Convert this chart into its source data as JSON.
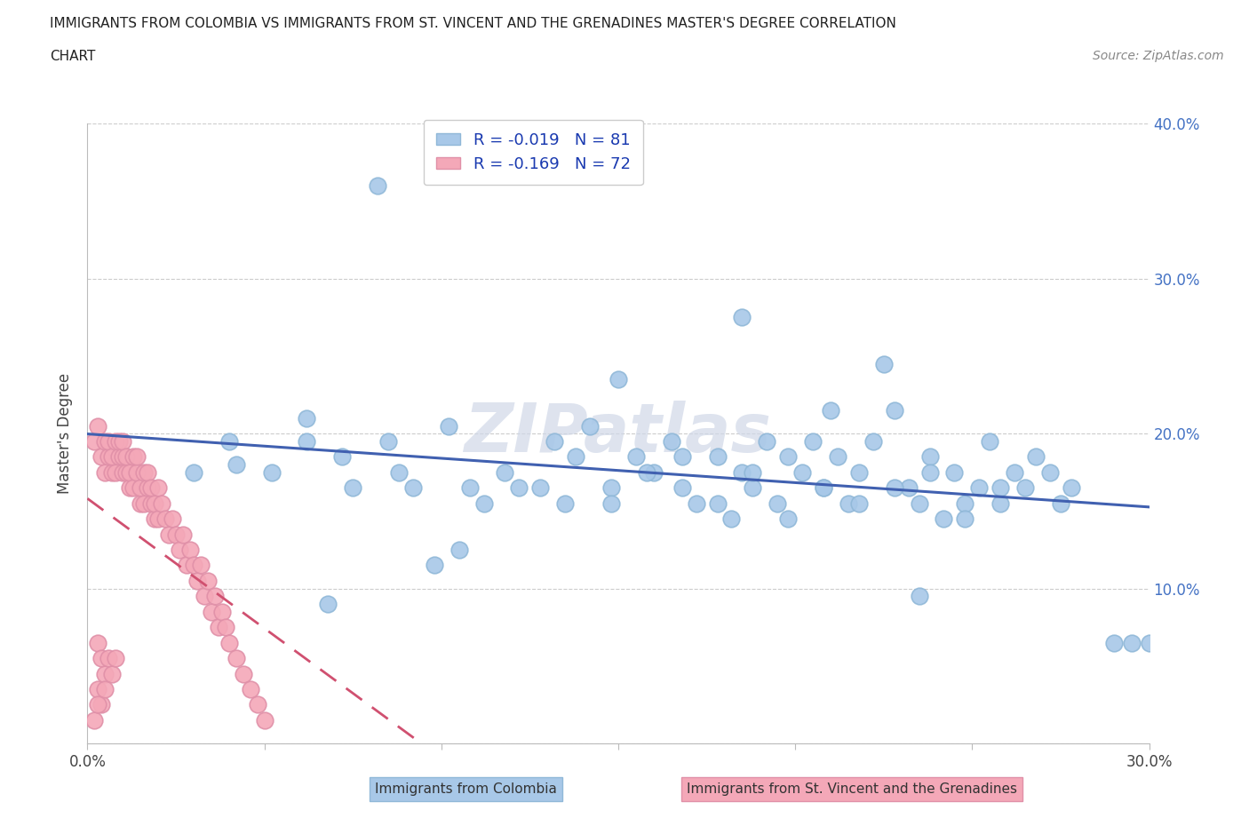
{
  "title_line1": "IMMIGRANTS FROM COLOMBIA VS IMMIGRANTS FROM ST. VINCENT AND THE GRENADINES MASTER'S DEGREE CORRELATION",
  "title_line2": "CHART",
  "source": "Source: ZipAtlas.com",
  "ylabel": "Master's Degree",
  "xlim": [
    0.0,
    0.3
  ],
  "ylim": [
    0.0,
    0.4
  ],
  "colombia_R": -0.019,
  "colombia_N": 81,
  "svg_R": -0.169,
  "svg_N": 72,
  "colombia_color": "#a8c8e8",
  "svg_color": "#f4a8b8",
  "colombia_line_color": "#4060b0",
  "svg_line_color": "#d05070",
  "watermark": "ZIPatlas",
  "legend_label_1": "Immigrants from Colombia",
  "legend_label_2": "Immigrants from St. Vincent and the Grenadines",
  "colombia_x": [
    0.082,
    0.03,
    0.042,
    0.052,
    0.062,
    0.072,
    0.085,
    0.092,
    0.102,
    0.112,
    0.122,
    0.132,
    0.142,
    0.148,
    0.155,
    0.16,
    0.165,
    0.168,
    0.172,
    0.178,
    0.182,
    0.185,
    0.188,
    0.192,
    0.195,
    0.198,
    0.202,
    0.205,
    0.208,
    0.212,
    0.215,
    0.218,
    0.222,
    0.225,
    0.228,
    0.232,
    0.235,
    0.238,
    0.242,
    0.245,
    0.248,
    0.252,
    0.255,
    0.258,
    0.262,
    0.265,
    0.268,
    0.272,
    0.275,
    0.278,
    0.062,
    0.075,
    0.088,
    0.098,
    0.108,
    0.118,
    0.128,
    0.138,
    0.148,
    0.158,
    0.168,
    0.178,
    0.188,
    0.198,
    0.208,
    0.218,
    0.228,
    0.238,
    0.248,
    0.258,
    0.04,
    0.135,
    0.15,
    0.21,
    0.235,
    0.29,
    0.295,
    0.3,
    0.185,
    0.105,
    0.068
  ],
  "colombia_y": [
    0.36,
    0.175,
    0.18,
    0.175,
    0.21,
    0.185,
    0.195,
    0.165,
    0.205,
    0.155,
    0.165,
    0.195,
    0.205,
    0.165,
    0.185,
    0.175,
    0.195,
    0.165,
    0.155,
    0.185,
    0.145,
    0.175,
    0.165,
    0.195,
    0.155,
    0.185,
    0.175,
    0.195,
    0.165,
    0.185,
    0.155,
    0.175,
    0.195,
    0.245,
    0.215,
    0.165,
    0.155,
    0.185,
    0.145,
    0.175,
    0.155,
    0.165,
    0.195,
    0.155,
    0.175,
    0.165,
    0.185,
    0.175,
    0.155,
    0.165,
    0.195,
    0.165,
    0.175,
    0.115,
    0.165,
    0.175,
    0.165,
    0.185,
    0.155,
    0.175,
    0.185,
    0.155,
    0.175,
    0.145,
    0.165,
    0.155,
    0.165,
    0.175,
    0.145,
    0.165,
    0.195,
    0.155,
    0.235,
    0.215,
    0.095,
    0.065,
    0.065,
    0.065,
    0.275,
    0.125,
    0.09
  ],
  "svg_x": [
    0.002,
    0.003,
    0.004,
    0.005,
    0.005,
    0.006,
    0.006,
    0.007,
    0.007,
    0.008,
    0.008,
    0.009,
    0.009,
    0.01,
    0.01,
    0.01,
    0.011,
    0.011,
    0.012,
    0.012,
    0.013,
    0.013,
    0.014,
    0.014,
    0.015,
    0.015,
    0.016,
    0.016,
    0.017,
    0.017,
    0.018,
    0.018,
    0.019,
    0.019,
    0.02,
    0.02,
    0.021,
    0.022,
    0.023,
    0.024,
    0.025,
    0.026,
    0.027,
    0.028,
    0.029,
    0.03,
    0.031,
    0.032,
    0.033,
    0.034,
    0.035,
    0.036,
    0.037,
    0.038,
    0.039,
    0.04,
    0.042,
    0.044,
    0.046,
    0.048,
    0.05,
    0.003,
    0.004,
    0.005,
    0.006,
    0.007,
    0.008,
    0.003,
    0.004,
    0.005,
    0.002,
    0.003
  ],
  "svg_y": [
    0.195,
    0.205,
    0.185,
    0.195,
    0.175,
    0.185,
    0.195,
    0.175,
    0.185,
    0.195,
    0.175,
    0.185,
    0.195,
    0.175,
    0.185,
    0.195,
    0.175,
    0.185,
    0.165,
    0.175,
    0.185,
    0.165,
    0.175,
    0.185,
    0.155,
    0.165,
    0.175,
    0.155,
    0.165,
    0.175,
    0.155,
    0.165,
    0.145,
    0.155,
    0.165,
    0.145,
    0.155,
    0.145,
    0.135,
    0.145,
    0.135,
    0.125,
    0.135,
    0.115,
    0.125,
    0.115,
    0.105,
    0.115,
    0.095,
    0.105,
    0.085,
    0.095,
    0.075,
    0.085,
    0.075,
    0.065,
    0.055,
    0.045,
    0.035,
    0.025,
    0.015,
    0.065,
    0.055,
    0.045,
    0.055,
    0.045,
    0.055,
    0.035,
    0.025,
    0.035,
    0.015,
    0.025
  ]
}
